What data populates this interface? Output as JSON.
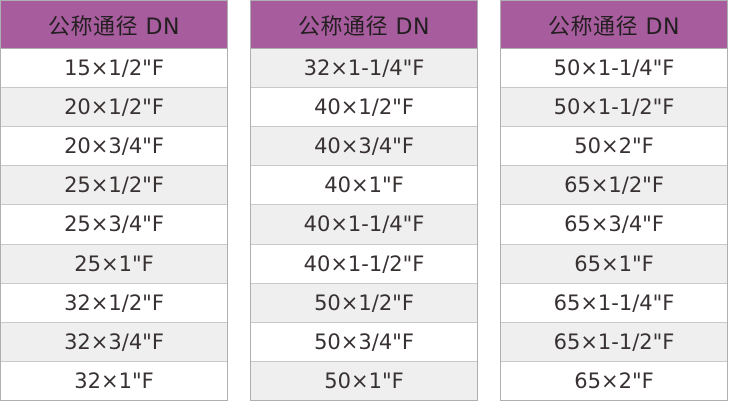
{
  "colors": {
    "header_bg": "#A75C9E",
    "header_text": "#231E20",
    "row_text": "#383132",
    "row_white": "#FFFFFF",
    "row_gray": "#EFEFEF",
    "divider": "#C9C9C9",
    "table_border": "#AFAFAF"
  },
  "tables": [
    {
      "header": "公称通径 DN",
      "first_row_shaded": false,
      "rows": [
        "15×1/2\"F",
        "20×1/2\"F",
        "20×3/4\"F",
        "25×1/2\"F",
        "25×3/4\"F",
        "25×1\"F",
        "32×1/2\"F",
        "32×3/4\"F",
        "32×1\"F"
      ]
    },
    {
      "header": "公称通径 DN",
      "first_row_shaded": true,
      "rows": [
        "32×1-1/4\"F",
        "40×1/2\"F",
        "40×3/4\"F",
        "40×1\"F",
        "40×1-1/4\"F",
        "40×1-1/2\"F",
        "50×1/2\"F",
        "50×3/4\"F",
        "50×1\"F"
      ]
    },
    {
      "header": "公称通径 DN",
      "first_row_shaded": false,
      "rows": [
        "50×1-1/4\"F",
        "50×1-1/2\"F",
        "50×2\"F",
        "65×1/2\"F",
        "65×3/4\"F",
        "65×1\"F",
        "65×1-1/4\"F",
        "65×1-1/2\"F",
        "65×2\"F"
      ]
    }
  ]
}
